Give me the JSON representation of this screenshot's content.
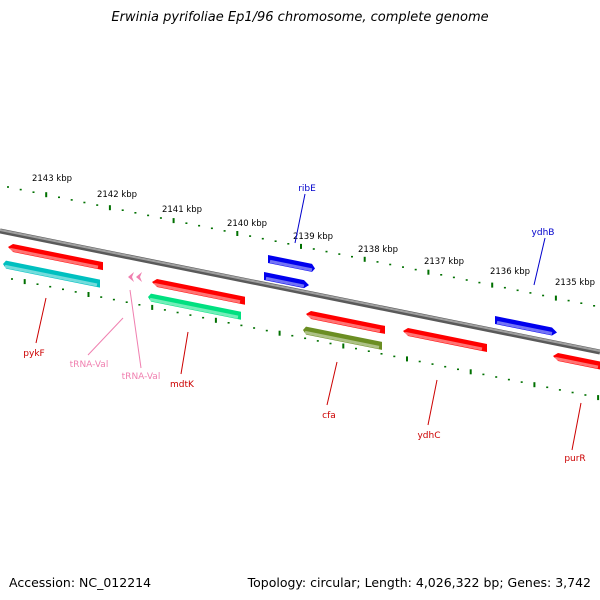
{
  "title": "Erwinia pyrifoliae Ep1/96 chromosome, complete genome",
  "footer": {
    "accession": "Accession: NC_012214",
    "topology": "Topology: circular; Length: 4,026,322 bp; Genes: 3,742"
  },
  "colors": {
    "cds": "#ff0000",
    "trna": "#f080b0",
    "rrna_teal": "#00c0c0",
    "green_feature": "#00e080",
    "olive_feature": "#6b8e23",
    "blue_feature": "#0000ee",
    "backbone": "#808080",
    "ticks": "#007000"
  },
  "ruler": {
    "labels": [
      "2143 kbp",
      "2142 kbp",
      "2141 kbp",
      "2140 kbp",
      "2139 kbp",
      "2138 kbp",
      "2137 kbp",
      "2136 kbp",
      "2135 kbp"
    ]
  },
  "gene_labels": [
    {
      "name": "ribE",
      "color": "#0000cc"
    },
    {
      "name": "ydhB",
      "color": "#0000cc"
    },
    {
      "name": "pykF",
      "color": "#cc0000"
    },
    {
      "name": "tRNA-Val",
      "color": "#f080b0"
    },
    {
      "name": "tRNA-Val",
      "color": "#f080b0"
    },
    {
      "name": "mdtK",
      "color": "#cc0000"
    },
    {
      "name": "cfa",
      "color": "#cc0000"
    },
    {
      "name": "ydhC",
      "color": "#cc0000"
    },
    {
      "name": "purR",
      "color": "#cc0000"
    }
  ]
}
